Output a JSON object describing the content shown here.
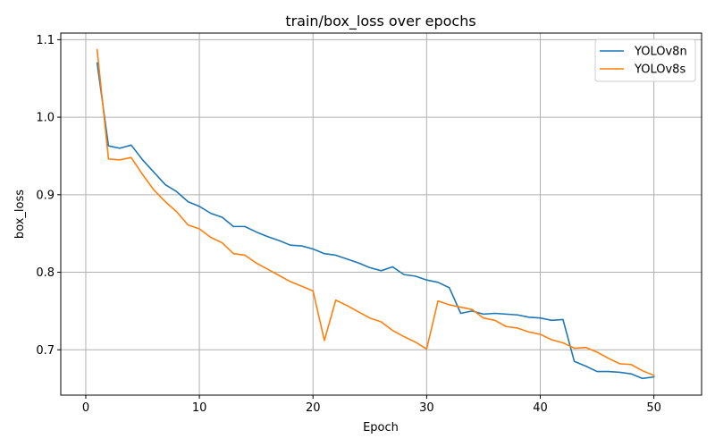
{
  "chart_data": {
    "type": "line",
    "title": "train/box_loss over epochs",
    "xlabel": "Epoch",
    "ylabel": "box_loss",
    "xlim": [
      -2.2,
      54.2
    ],
    "ylim": [
      0.6415,
      1.1085
    ],
    "xticks": [
      0,
      10,
      20,
      30,
      40,
      50
    ],
    "yticks": [
      0.7,
      0.8,
      0.9,
      1.0,
      1.1
    ],
    "xtick_labels": [
      "0",
      "10",
      "20",
      "30",
      "40",
      "50"
    ],
    "ytick_labels": [
      "0.7",
      "0.8",
      "0.9",
      "1.0",
      "1.1"
    ],
    "grid": true,
    "legend_position": "top-right",
    "x": [
      1,
      2,
      3,
      4,
      5,
      6,
      7,
      8,
      9,
      10,
      11,
      12,
      13,
      14,
      15,
      16,
      17,
      18,
      19,
      20,
      21,
      22,
      23,
      24,
      25,
      26,
      27,
      28,
      29,
      30,
      31,
      32,
      33,
      34,
      35,
      36,
      37,
      38,
      39,
      40,
      41,
      42,
      43,
      44,
      45,
      46,
      47,
      48,
      49,
      50
    ],
    "series": [
      {
        "name": "YOLOv8n",
        "color": "#1f77b4",
        "values": [
          1.07,
          0.963,
          0.96,
          0.964,
          0.945,
          0.929,
          0.913,
          0.904,
          0.891,
          0.885,
          0.876,
          0.871,
          0.859,
          0.859,
          0.852,
          0.846,
          0.841,
          0.835,
          0.834,
          0.83,
          0.824,
          0.822,
          0.817,
          0.812,
          0.806,
          0.802,
          0.807,
          0.797,
          0.795,
          0.79,
          0.787,
          0.78,
          0.747,
          0.75,
          0.746,
          0.747,
          0.746,
          0.745,
          0.742,
          0.741,
          0.738,
          0.739,
          0.685,
          0.679,
          0.672,
          0.672,
          0.671,
          0.669,
          0.663,
          0.665
        ]
      },
      {
        "name": "YOLOv8s",
        "color": "#ff7f0e",
        "values": [
          1.087,
          0.946,
          0.945,
          0.948,
          0.926,
          0.906,
          0.891,
          0.878,
          0.861,
          0.856,
          0.845,
          0.838,
          0.824,
          0.822,
          0.812,
          0.804,
          0.796,
          0.788,
          0.782,
          0.776,
          0.712,
          0.764,
          0.757,
          0.749,
          0.741,
          0.736,
          0.725,
          0.717,
          0.71,
          0.701,
          0.763,
          0.758,
          0.755,
          0.752,
          0.741,
          0.738,
          0.73,
          0.728,
          0.723,
          0.72,
          0.713,
          0.709,
          0.702,
          0.703,
          0.697,
          0.689,
          0.682,
          0.681,
          0.673,
          0.667
        ]
      }
    ]
  }
}
